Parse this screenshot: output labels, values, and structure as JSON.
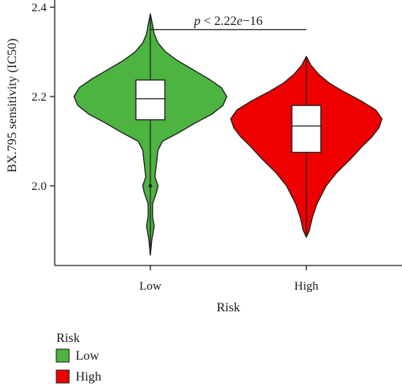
{
  "chart_data": {
    "type": "violin",
    "xlabel": "Risk",
    "ylabel": "BX.795 sensitivity (IC50)",
    "categories": [
      "Low",
      "High"
    ],
    "ylim": [
      1.815,
      2.41
    ],
    "yticks": [
      2.0,
      2.2,
      2.4
    ],
    "grid": false,
    "series": [
      {
        "name": "Low",
        "color": "#4db341",
        "min": 1.845,
        "q1": 2.148,
        "median": 2.195,
        "q3": 2.237,
        "max": 2.385,
        "outliers": [
          2.0
        ],
        "density": [
          [
            1.845,
            0.0
          ],
          [
            1.88,
            0.02
          ],
          [
            1.91,
            0.05
          ],
          [
            1.93,
            0.03
          ],
          [
            1.96,
            0.03
          ],
          [
            1.985,
            0.08
          ],
          [
            2.0,
            0.1
          ],
          [
            2.02,
            0.06
          ],
          [
            2.05,
            0.08
          ],
          [
            2.08,
            0.1
          ],
          [
            2.1,
            0.16
          ],
          [
            2.12,
            0.38
          ],
          [
            2.14,
            0.58
          ],
          [
            2.16,
            0.8
          ],
          [
            2.18,
            0.95
          ],
          [
            2.2,
            1.0
          ],
          [
            2.22,
            0.93
          ],
          [
            2.24,
            0.76
          ],
          [
            2.26,
            0.56
          ],
          [
            2.28,
            0.36
          ],
          [
            2.3,
            0.2
          ],
          [
            2.32,
            0.1
          ],
          [
            2.34,
            0.05
          ],
          [
            2.36,
            0.03
          ],
          [
            2.385,
            0.0
          ]
        ]
      },
      {
        "name": "High",
        "color": "#ee0000",
        "min": 1.885,
        "q1": 2.075,
        "median": 2.134,
        "q3": 2.18,
        "max": 2.29,
        "outliers": [],
        "density": [
          [
            1.885,
            0.0
          ],
          [
            1.9,
            0.04
          ],
          [
            1.93,
            0.08
          ],
          [
            1.96,
            0.14
          ],
          [
            2.0,
            0.26
          ],
          [
            2.03,
            0.4
          ],
          [
            2.06,
            0.58
          ],
          [
            2.09,
            0.74
          ],
          [
            2.11,
            0.86
          ],
          [
            2.13,
            0.95
          ],
          [
            2.15,
            0.99
          ],
          [
            2.17,
            0.91
          ],
          [
            2.19,
            0.72
          ],
          [
            2.21,
            0.5
          ],
          [
            2.23,
            0.3
          ],
          [
            2.25,
            0.16
          ],
          [
            2.27,
            0.06
          ],
          [
            2.29,
            0.0
          ]
        ]
      }
    ],
    "annotation": {
      "text_prefix": "p",
      "text_rest": " < 2.22",
      "text_e": "e",
      "text_exp": "−16",
      "bracket_y": 2.35
    },
    "legend": {
      "title": "Risk",
      "placement": "bottom-left",
      "items": [
        {
          "label": "Low",
          "color": "#4db341"
        },
        {
          "label": "High",
          "color": "#ee0000"
        }
      ]
    }
  }
}
